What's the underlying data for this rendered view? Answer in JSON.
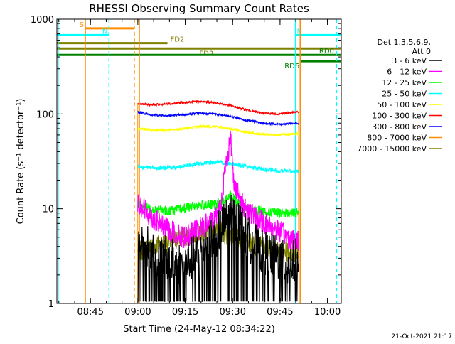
{
  "chart_data": {
    "type": "line",
    "title": "RHESSI Observing Summary Count Rates",
    "xlabel": "Start Time (24-May-12 08:34:22)",
    "ylabel": "Count Rate (s⁻¹ detector⁻¹)",
    "yscale": "log",
    "ylim": [
      1,
      1000
    ],
    "xlim_minutes_from_start": [
      0,
      90
    ],
    "x_ticks": [
      "08:45",
      "09:00",
      "09:15",
      "09:30",
      "09:45",
      "10:00"
    ],
    "x_tick_minutes": [
      10.63,
      25.63,
      40.63,
      55.63,
      70.63,
      85.63
    ],
    "y_ticks": [
      "1",
      "10",
      "100",
      "1000"
    ],
    "y_tick_values": [
      1,
      10,
      100,
      1000
    ],
    "grid": false,
    "legend_placement": "right",
    "legend_header": [
      "Det 1,3,5,6,9,",
      "Att 0"
    ],
    "timestamp": "21-Oct-2021 21:17",
    "series": [
      {
        "name": "3 - 6 keV",
        "color": "#000000",
        "start_min": 25.6,
        "end_min": 76.5,
        "x_min": [
          25.6,
          30,
          35,
          40,
          45,
          50,
          53,
          55,
          58,
          60,
          63,
          65,
          70,
          73,
          76.5
        ],
        "values": [
          5,
          3.5,
          3,
          2.5,
          3.5,
          5,
          7,
          9,
          7,
          5,
          4,
          3.5,
          3,
          2.5,
          3
        ]
      },
      {
        "name": "6 - 12 keV",
        "color": "#ff00ff",
        "start_min": 25.6,
        "end_min": 76.5,
        "x_min": [
          25.6,
          30,
          35,
          40,
          45,
          50,
          52,
          53.5,
          55,
          56,
          58,
          60,
          63,
          66,
          70,
          73,
          76.5
        ],
        "values": [
          12,
          8,
          6,
          5,
          6,
          8,
          12,
          30,
          55,
          20,
          12,
          10,
          8,
          7,
          6,
          5,
          4.5
        ]
      },
      {
        "name": "12 - 25 keV",
        "color": "#00ff00",
        "start_min": 25.6,
        "end_min": 76.5,
        "x_min": [
          25.6,
          30,
          35,
          40,
          45,
          50,
          53,
          55,
          58,
          60,
          65,
          70,
          76.5
        ],
        "values": [
          11,
          10,
          9.5,
          10,
          11,
          11,
          12,
          14,
          11,
          10,
          9.5,
          9,
          9
        ]
      },
      {
        "name": "25 - 50 keV",
        "color": "#00ffff",
        "start_min": 25.6,
        "end_min": 76.5,
        "x_min": [
          25.6,
          30,
          35,
          40,
          45,
          50,
          55,
          60,
          65,
          70,
          76.5
        ],
        "values": [
          28,
          27,
          27,
          28,
          30,
          31,
          30,
          28,
          26,
          25,
          25
        ]
      },
      {
        "name": "50 - 100 keV",
        "color": "#ffff00",
        "start_min": 25.6,
        "end_min": 76.5,
        "x_min": [
          25.6,
          30,
          35,
          40,
          45,
          50,
          55,
          60,
          65,
          70,
          76.5
        ],
        "values": [
          70,
          68,
          67,
          70,
          74,
          74,
          70,
          64,
          61,
          60,
          62
        ]
      },
      {
        "name": "100 - 300 keV",
        "color": "#ff0000",
        "start_min": 25.6,
        "end_min": 76.5,
        "x_min": [
          25.6,
          30,
          35,
          40,
          45,
          50,
          55,
          60,
          65,
          70,
          76.5
        ],
        "values": [
          128,
          125,
          127,
          132,
          135,
          132,
          122,
          110,
          102,
          100,
          105
        ]
      },
      {
        "name": "300 - 800 keV",
        "color": "#0000ff",
        "start_min": 25.6,
        "end_min": 76.5,
        "x_min": [
          25.6,
          30,
          35,
          40,
          45,
          50,
          55,
          60,
          65,
          70,
          76.5
        ],
        "values": [
          105,
          98,
          96,
          98,
          102,
          100,
          94,
          86,
          80,
          78,
          80
        ]
      },
      {
        "name": "800 - 7000 keV",
        "color": "#ff8c00",
        "start_min": 25.6,
        "end_min": 76.5,
        "x_min": [
          25.6,
          76.5
        ],
        "values": [
          1,
          1
        ]
      },
      {
        "name": "7000 - 15000 keV",
        "color": "#808000",
        "start_min": 25.6,
        "end_min": 76.5,
        "x_min": [
          25.6,
          30,
          35,
          40,
          45,
          50,
          55,
          60,
          65,
          70,
          76.5
        ],
        "values": [
          3.5,
          4,
          4.5,
          5,
          5.5,
          6,
          5,
          4.5,
          4,
          3.5,
          3.5
        ]
      }
    ],
    "flag_bars": [
      {
        "label": "S",
        "color": "#ff8c00",
        "start_min": 9,
        "end_min": 24.5,
        "level": 800
      },
      {
        "label": "N",
        "color": "#00ffff",
        "start_min": 0,
        "end_min": 16.5,
        "level": 680
      },
      {
        "label": "N",
        "color": "#00ffff",
        "start_min": 75.5,
        "end_min": 90,
        "level": 680
      },
      {
        "label": "FD2",
        "color": "#808000",
        "start_min": 0,
        "end_min": 35,
        "level": 560
      },
      {
        "label": "FD3",
        "color": "#808000",
        "start_min": 0,
        "end_min": 90,
        "level": 490
      },
      {
        "label": "RD0",
        "color": "#008000",
        "start_min": 0,
        "end_min": 90,
        "level": 420
      },
      {
        "label": "RD6",
        "color": "#008000",
        "start_min": 77,
        "end_min": 90,
        "level": 360
      }
    ],
    "vertical_markers": [
      {
        "color": "#00ffff",
        "style": "solid",
        "at_min": 0.4
      },
      {
        "color": "#ff8c00",
        "style": "solid",
        "at_min": 9
      },
      {
        "color": "#00ffff",
        "style": "dashed",
        "at_min": 16.5
      },
      {
        "color": "#ff8c00",
        "style": "dashed",
        "at_min": 24.5
      },
      {
        "color": "#ff8c00",
        "style": "solid",
        "at_min": 26.1
      },
      {
        "color": "#00ffff",
        "style": "solid",
        "at_min": 75.5
      },
      {
        "color": "#ff8c00",
        "style": "solid",
        "at_min": 77
      },
      {
        "color": "#00ffff",
        "style": "dashed",
        "at_min": 88.5
      }
    ]
  }
}
